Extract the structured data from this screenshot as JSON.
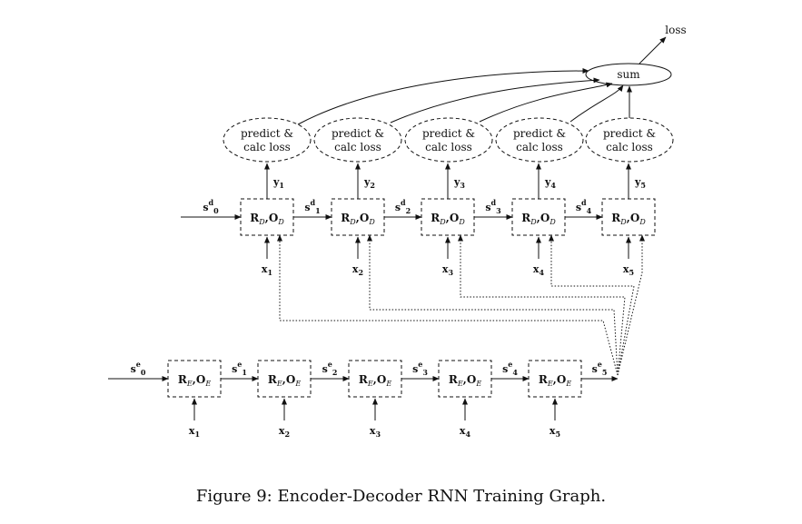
{
  "caption": "Figure 9: Encoder-Decoder RNN Training Graph.",
  "loss": {
    "sum_label": "sum",
    "output_label": "loss"
  },
  "predict": {
    "line1": "predict &",
    "line2": "calc loss"
  },
  "decoder": {
    "cell": {
      "R": "R",
      "R_sub": "D",
      "O": "O",
      "O_sub": "D"
    },
    "state": {
      "base": "s",
      "sup": "d"
    },
    "output": {
      "base": "y"
    },
    "input": {
      "base": "x"
    }
  },
  "encoder": {
    "cell": {
      "R": "R",
      "R_sub": "E",
      "O": "O",
      "O_sub": "E"
    },
    "state": {
      "base": "s",
      "sup": "e"
    },
    "input": {
      "base": "x"
    }
  },
  "indices": [
    "0",
    "1",
    "2",
    "3",
    "4",
    "5"
  ]
}
